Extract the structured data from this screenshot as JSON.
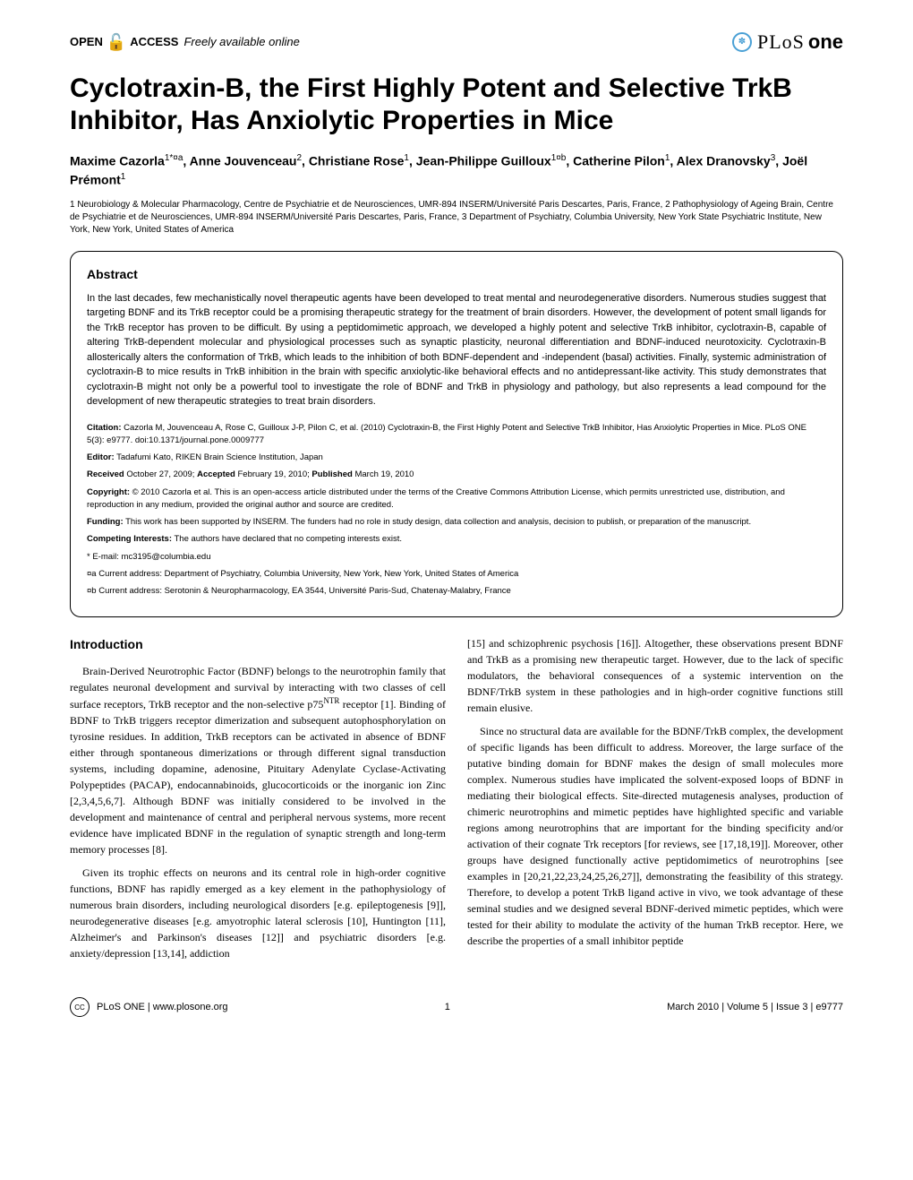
{
  "header": {
    "open_access_label": "OPEN",
    "access_label": "ACCESS",
    "freely_label": "Freely available online",
    "journal_plos": "PLoS",
    "journal_one": "one"
  },
  "title": "Cyclotraxin-B, the First Highly Potent and Selective TrkB Inhibitor, Has Anxiolytic Properties in Mice",
  "authors_html": "Maxime Cazorla<sup>1*¤a</sup>, Anne Jouvenceau<sup>2</sup>, Christiane Rose<sup>1</sup>, Jean-Philippe Guilloux<sup>1¤b</sup>, Catherine Pilon<sup>1</sup>, Alex Dranovsky<sup>3</sup>, Joël Prémont<sup>1</sup>",
  "affiliations": "1 Neurobiology & Molecular Pharmacology, Centre de Psychiatrie et de Neurosciences, UMR-894 INSERM/Université Paris Descartes, Paris, France, 2 Pathophysiology of Ageing Brain, Centre de Psychiatrie et de Neurosciences, UMR-894 INSERM/Université Paris Descartes, Paris, France, 3 Department of Psychiatry, Columbia University, New York State Psychiatric Institute, New York, New York, United States of America",
  "abstract": {
    "heading": "Abstract",
    "text": "In the last decades, few mechanistically novel therapeutic agents have been developed to treat mental and neurodegenerative disorders. Numerous studies suggest that targeting BDNF and its TrkB receptor could be a promising therapeutic strategy for the treatment of brain disorders. However, the development of potent small ligands for the TrkB receptor has proven to be difficult. By using a peptidomimetic approach, we developed a highly potent and selective TrkB inhibitor, cyclotraxin-B, capable of altering TrkB-dependent molecular and physiological processes such as synaptic plasticity, neuronal differentiation and BDNF-induced neurotoxicity. Cyclotraxin-B allosterically alters the conformation of TrkB, which leads to the inhibition of both BDNF-dependent and -independent (basal) activities. Finally, systemic administration of cyclotraxin-B to mice results in TrkB inhibition in the brain with specific anxiolytic-like behavioral effects and no antidepressant-like activity. This study demonstrates that cyclotraxin-B might not only be a powerful tool to investigate the role of BDNF and TrkB in physiology and pathology, but also represents a lead compound for the development of new therapeutic strategies to treat brain disorders."
  },
  "meta": {
    "citation_label": "Citation:",
    "citation_text": " Cazorla M, Jouvenceau A, Rose C, Guilloux J-P, Pilon C, et al. (2010) Cyclotraxin-B, the First Highly Potent and Selective TrkB Inhibitor, Has Anxiolytic Properties in Mice. PLoS ONE 5(3): e9777. doi:10.1371/journal.pone.0009777",
    "editor_label": "Editor:",
    "editor_text": " Tadafumi Kato, RIKEN Brain Science Institution, Japan",
    "received_label": "Received",
    "received_text": " October 27, 2009; ",
    "accepted_label": "Accepted",
    "accepted_text": " February 19, 2010; ",
    "published_label": "Published",
    "published_text": " March 19, 2010",
    "copyright_label": "Copyright:",
    "copyright_text": " © 2010 Cazorla et al. This is an open-access article distributed under the terms of the Creative Commons Attribution License, which permits unrestricted use, distribution, and reproduction in any medium, provided the original author and source are credited.",
    "funding_label": "Funding:",
    "funding_text": " This work has been supported by INSERM. The funders had no role in study design, data collection and analysis, decision to publish, or preparation of the manuscript.",
    "competing_label": "Competing Interests:",
    "competing_text": " The authors have declared that no competing interests exist.",
    "email_label": "* E-mail: mc3195@columbia.edu",
    "addr_a": "¤a Current address: Department of Psychiatry, Columbia University, New York, New York, United States of America",
    "addr_b": "¤b Current address: Serotonin & Neuropharmacology, EA 3544, Université Paris-Sud, Chatenay-Malabry, France"
  },
  "intro": {
    "heading": "Introduction",
    "p1": "Brain-Derived Neurotrophic Factor (BDNF) belongs to the neurotrophin family that regulates neuronal development and survival by interacting with two classes of cell surface receptors, TrkB receptor and the non-selective p75NTR receptor [1]. Binding of BDNF to TrkB triggers receptor dimerization and subsequent autophosphorylation on tyrosine residues. In addition, TrkB receptors can be activated in absence of BDNF either through spontaneous dimerizations or through different signal transduction systems, including dopamine, adenosine, Pituitary Adenylate Cyclase-Activating Polypeptides (PACAP), endocannabinoids, glucocorticoids or the inorganic ion Zinc [2,3,4,5,6,7]. Although BDNF was initially considered to be involved in the development and maintenance of central and peripheral nervous systems, more recent evidence have implicated BDNF in the regulation of synaptic strength and long-term memory processes [8].",
    "p2": "Given its trophic effects on neurons and its central role in high-order cognitive functions, BDNF has rapidly emerged as a key element in the pathophysiology of numerous brain disorders, including neurological disorders [e.g. epileptogenesis [9]], neurodegenerative diseases [e.g. amyotrophic lateral sclerosis [10], Huntington [11], Alzheimer's and Parkinson's diseases [12]] and psychiatric disorders [e.g. anxiety/depression [13,14], addiction",
    "p3": "[15] and schizophrenic psychosis [16]]. Altogether, these observations present BDNF and TrkB as a promising new therapeutic target. However, due to the lack of specific modulators, the behavioral consequences of a systemic intervention on the BDNF/TrkB system in these pathologies and in high-order cognitive functions still remain elusive.",
    "p4": "Since no structural data are available for the BDNF/TrkB complex, the development of specific ligands has been difficult to address. Moreover, the large surface of the putative binding domain for BDNF makes the design of small molecules more complex. Numerous studies have implicated the solvent-exposed loops of BDNF in mediating their biological effects. Site-directed mutagenesis analyses, production of chimeric neurotrophins and mimetic peptides have highlighted specific and variable regions among neurotrophins that are important for the binding specificity and/or activation of their cognate Trk receptors [for reviews, see [17,18,19]]. Moreover, other groups have designed functionally active peptidomimetics of neurotrophins [see examples in [20,21,22,23,24,25,26,27]], demonstrating the feasibility of this strategy. Therefore, to develop a potent TrkB ligand active in vivo, we took advantage of these seminal studies and we designed several BDNF-derived mimetic peptides, which were tested for their ability to modulate the activity of the human TrkB receptor. Here, we describe the properties of a small inhibitor peptide"
  },
  "footer": {
    "journal": "PLoS ONE | www.plosone.org",
    "page": "1",
    "issue": "March 2010 | Volume 5 | Issue 3 | e9777"
  },
  "colors": {
    "orange": "#f7931e",
    "blue": "#4aa0d5",
    "black": "#000000",
    "bg": "#ffffff"
  }
}
